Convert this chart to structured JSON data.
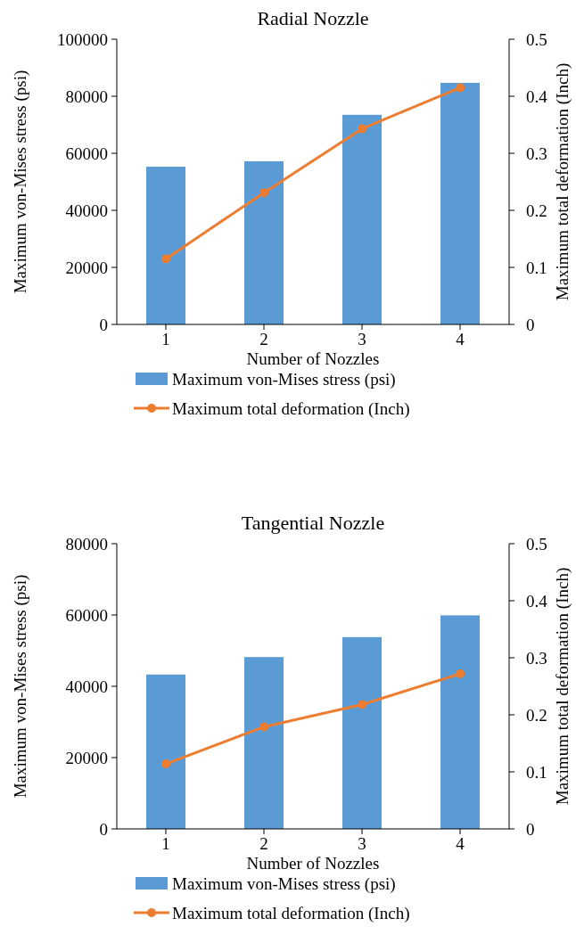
{
  "chart_data": [
    {
      "type": "bar",
      "title": "Radial Nozzle",
      "xlabel": "Number of Nozzles",
      "ylabel": "Maximum von-Mises stress (psi)",
      "y2label": "Maximum total deformation (Inch)",
      "categories": [
        "1",
        "2",
        "3",
        "4"
      ],
      "series": [
        {
          "name": "Maximum von-Mises stress (psi)",
          "color": "#5b9bd5",
          "values": [
            55300,
            57200,
            73500,
            84700
          ]
        },
        {
          "name": "Maximum total deformation (Inch)",
          "type": "line",
          "axis": "y2",
          "color": "#ed7d31",
          "marker": "circle",
          "values": [
            0.115,
            0.231,
            0.343,
            0.415
          ]
        }
      ],
      "ylim": [
        0,
        100000
      ],
      "yticks": [
        0,
        20000,
        40000,
        60000,
        80000,
        100000
      ],
      "y2lim": [
        0,
        0.5
      ],
      "y2ticks": [
        {
          "value": 0,
          "label": "0"
        },
        {
          "value": 0.1,
          "label": "0.1"
        },
        {
          "value": 0.2,
          "label": "0.2"
        },
        {
          "value": 0.3,
          "label": "0.3"
        },
        {
          "value": 0.4,
          "label": "0.4"
        },
        {
          "value": 0.5,
          "label": "0.5"
        }
      ],
      "legend": "bottom",
      "grid": false
    },
    {
      "type": "bar",
      "title": "Tangential Nozzle",
      "xlabel": "Number of Nozzles",
      "ylabel": "Maximum von-Mises stress (psi)",
      "y2label": "Maximum total deformation (Inch)",
      "categories": [
        "1",
        "2",
        "3",
        "4"
      ],
      "series": [
        {
          "name": "Maximum von-Mises stress (psi)",
          "color": "#5b9bd5",
          "values": [
            43300,
            48200,
            53800,
            59900
          ]
        },
        {
          "name": "Maximum total deformation (Inch)",
          "type": "line",
          "axis": "y2",
          "color": "#ed7d31",
          "marker": "circle",
          "values": [
            0.114,
            0.179,
            0.218,
            0.272
          ]
        }
      ],
      "ylim": [
        0,
        80000
      ],
      "yticks": [
        0,
        20000,
        40000,
        60000,
        80000
      ],
      "y2lim": [
        0,
        0.5
      ],
      "y2ticks": [
        {
          "value": 0,
          "label": "0"
        },
        {
          "value": 0.1,
          "label": "0.1"
        },
        {
          "value": 0.2,
          "label": "0.2"
        },
        {
          "value": 0.3,
          "label": "0.3"
        },
        {
          "value": 0.4,
          "label": "0.4"
        },
        {
          "value": 0.5,
          "label": "0.5"
        }
      ],
      "legend": "bottom",
      "grid": false
    }
  ]
}
